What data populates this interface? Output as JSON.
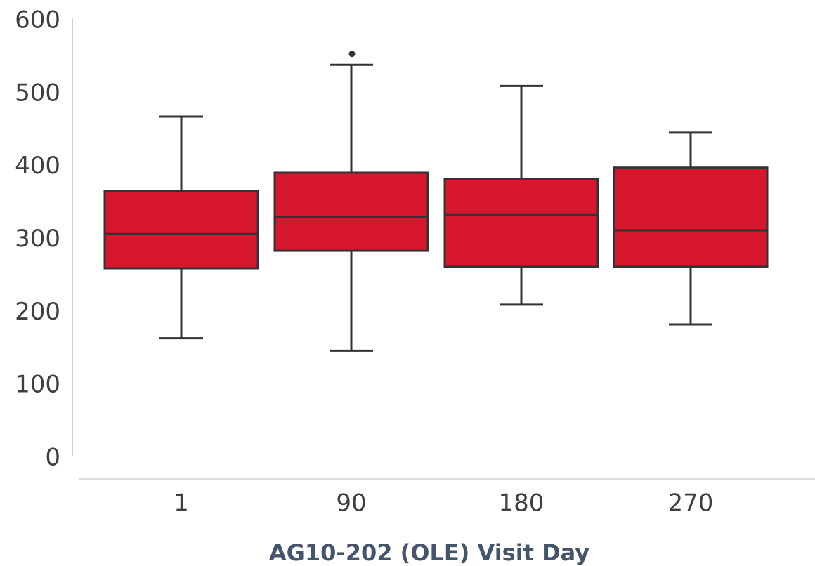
{
  "chart_data": {
    "type": "box",
    "title": "",
    "xlabel": "AG10-202 (OLE) Visit Day",
    "ylabel": "",
    "ylim": [
      0,
      600
    ],
    "yticks": [
      0,
      100,
      200,
      300,
      400,
      500,
      600
    ],
    "categories": [
      "1",
      "90",
      "180",
      "270"
    ],
    "boxes": [
      {
        "category": "1",
        "whisker_low": 165,
        "q1": 261,
        "median": 308,
        "q3": 367,
        "whisker_high": 469,
        "outliers": []
      },
      {
        "category": "90",
        "whisker_low": 148,
        "q1": 285,
        "median": 331,
        "q3": 392,
        "whisker_high": 540,
        "outliers": [
          555
        ]
      },
      {
        "category": "180",
        "whisker_low": 211,
        "q1": 263,
        "median": 334,
        "q3": 383,
        "whisker_high": 511,
        "outliers": []
      },
      {
        "category": "270",
        "whisker_low": 184,
        "q1": 263,
        "median": 313,
        "q3": 399,
        "whisker_high": 447,
        "outliers": []
      }
    ],
    "grid": false,
    "legend": "none",
    "colors": {
      "box_fill": "#d7172e",
      "line": "#333333",
      "outlier": "#333333",
      "tick_text": "#3f3f3f",
      "axis_title": "#44546a",
      "axis_line": "#d0d0d0"
    }
  }
}
